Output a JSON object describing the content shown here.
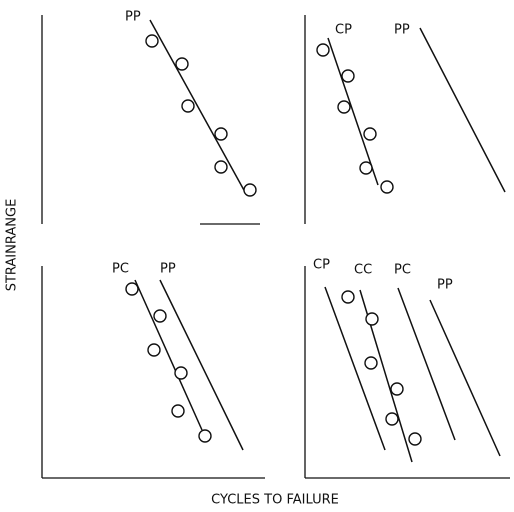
{
  "axes": {
    "y_label": "STRAINRANGE",
    "x_label": "CYCLES TO FAILURE"
  },
  "panels": [
    {
      "labels": [
        "PP"
      ]
    },
    {
      "labels": [
        "CP",
        "PP"
      ]
    },
    {
      "labels": [
        "PC",
        "PP"
      ]
    },
    {
      "labels": [
        "CP",
        "CC",
        "PC",
        "PP"
      ]
    }
  ]
}
